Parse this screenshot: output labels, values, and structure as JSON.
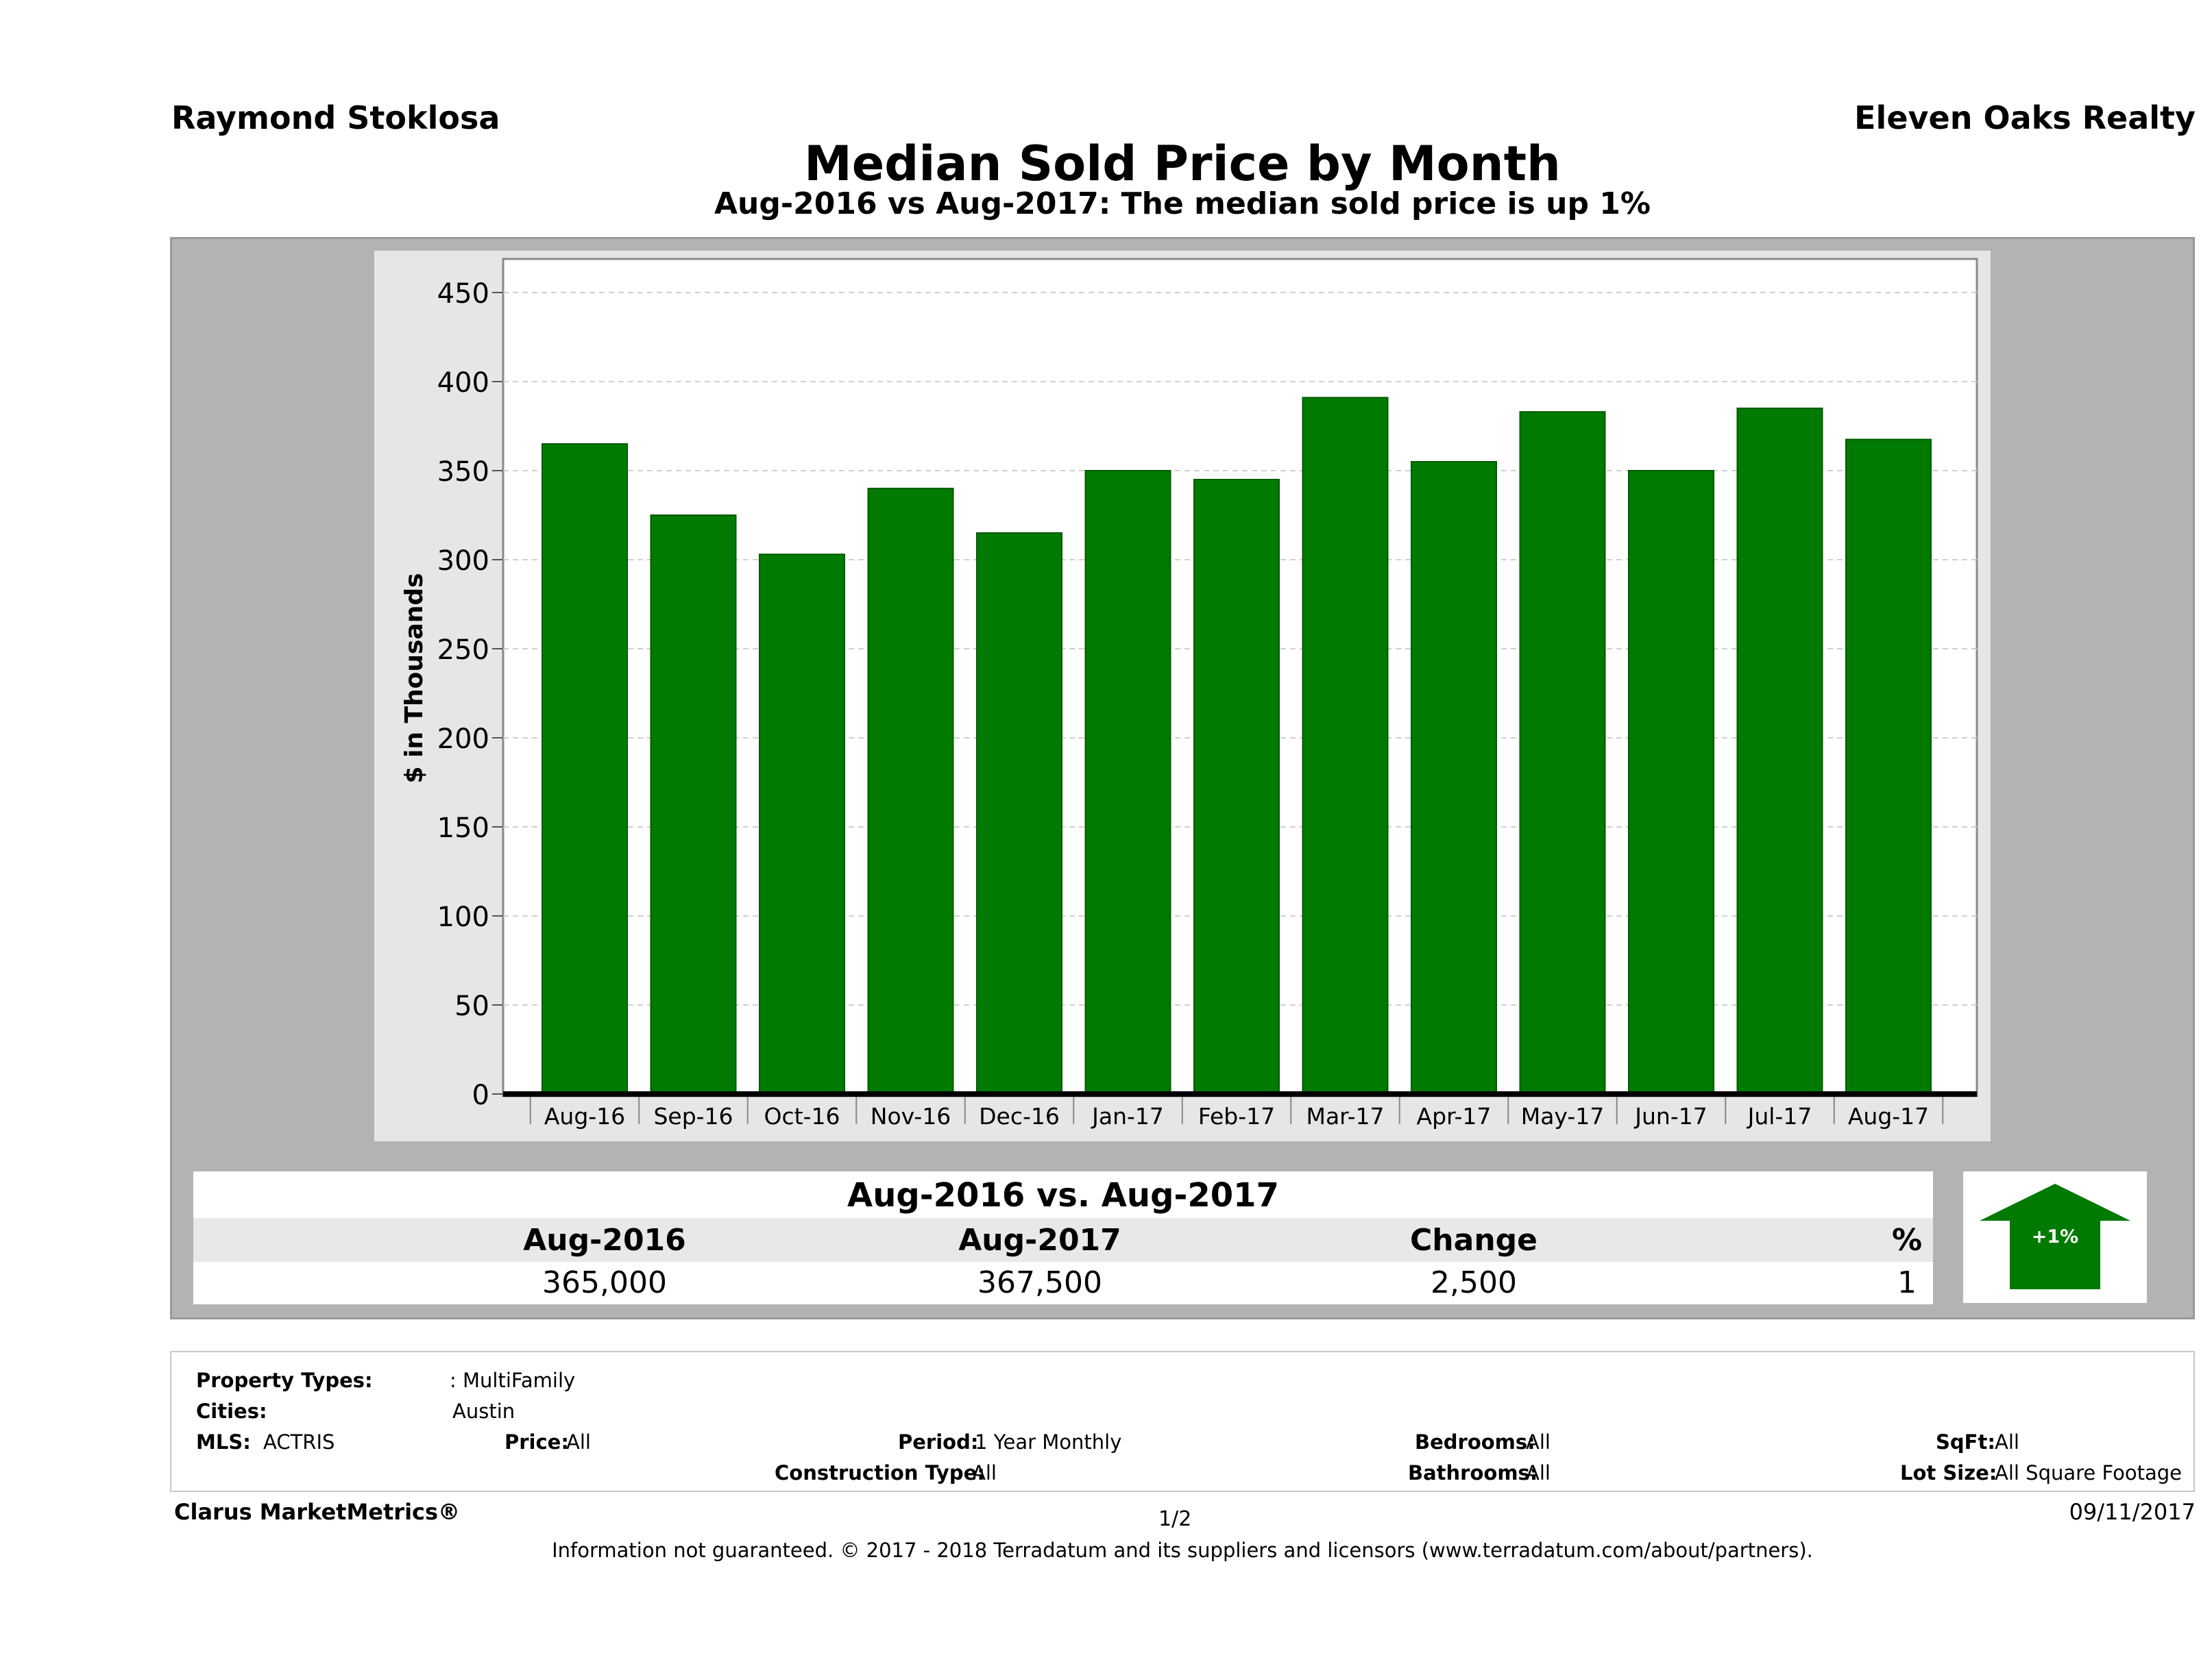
{
  "header": {
    "agent": "Raymond Stoklosa",
    "company": "Eleven Oaks Realty",
    "title": "Median Sold Price by Month",
    "subtitle": "Aug-2016 vs Aug-2017: The median sold price is up 1%"
  },
  "chart_data": {
    "type": "bar",
    "title": "Median Sold Price by Month",
    "subtitle": "Aug-2016 vs Aug-2017: The median sold price is up 1%",
    "ylabel": "$ in Thousands",
    "xlabel": "",
    "categories": [
      "Aug-16",
      "Sep-16",
      "Oct-16",
      "Nov-16",
      "Dec-16",
      "Jan-17",
      "Feb-17",
      "Mar-17",
      "Apr-17",
      "May-17",
      "Jun-17",
      "Jul-17",
      "Aug-17"
    ],
    "values": [
      365,
      325,
      303,
      340,
      315,
      350,
      345,
      391,
      355,
      383,
      350,
      385,
      367.5
    ],
    "ylim": [
      0,
      470
    ],
    "yticks": [
      0,
      50,
      100,
      150,
      200,
      250,
      300,
      350,
      400,
      450
    ],
    "grid": true,
    "bar_color": "#007a00"
  },
  "comparison": {
    "title": "Aug-2016 vs. Aug-2017",
    "headers": [
      "Aug-2016",
      "Aug-2017",
      "Change",
      "%"
    ],
    "values": [
      "365,000",
      "367,500",
      "2,500",
      "1"
    ],
    "badge": "+1%",
    "arrow_color": "#007a00"
  },
  "filters": {
    "property_types_label": "Property Types:",
    "property_types_value": ": MultiFamily",
    "cities_label": "Cities:",
    "cities_value": "Austin",
    "mls_label": "MLS:",
    "mls_value": "ACTRIS",
    "price_label": "Price:",
    "price_value": "All",
    "period_label": "Period:",
    "period_value": "1 Year Monthly",
    "construction_label": "Construction Type:",
    "construction_value": "All",
    "bedrooms_label": "Bedrooms:",
    "bedrooms_value": "All",
    "bathrooms_label": "Bathrooms:",
    "bathrooms_value": "All",
    "sqft_label": "SqFt:",
    "sqft_value": "All",
    "lot_label": "Lot Size:",
    "lot_value": "All Square Footage"
  },
  "footer": {
    "brand": "Clarus MarketMetrics®",
    "page": "1/2",
    "date": "09/11/2017",
    "disclaimer": "Information not guaranteed. © 2017 - 2018 Terradatum and its suppliers and licensors (www.terradatum.com/about/partners)."
  }
}
